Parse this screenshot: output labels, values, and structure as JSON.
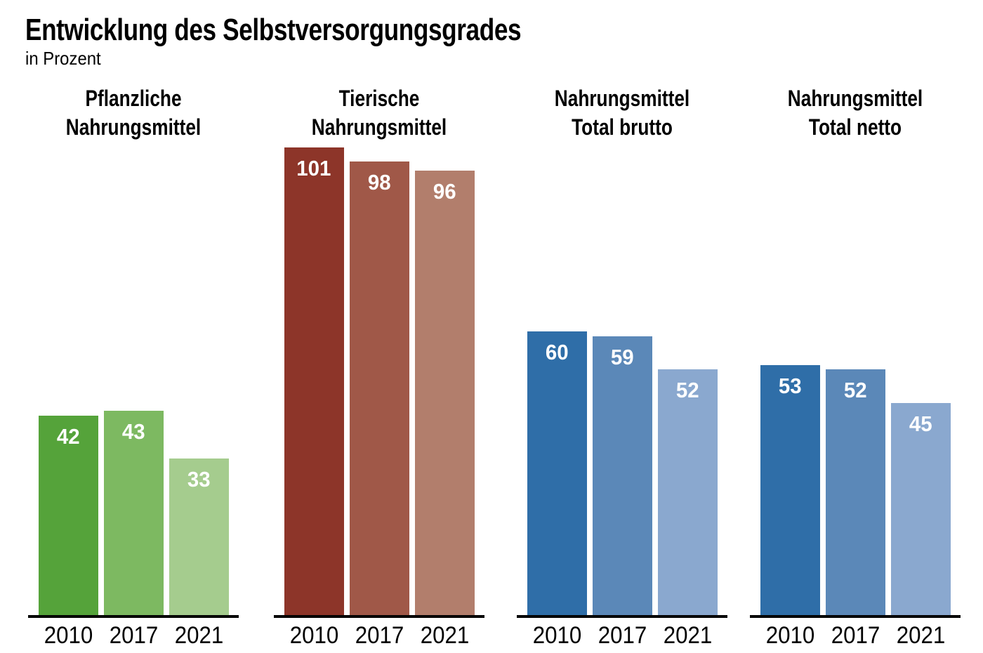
{
  "title": "Entwicklung des Selbstversorgungsgrades",
  "subtitle": "in Prozent",
  "chart_data": {
    "type": "bar",
    "title": "Entwicklung des Selbstversorgungsgrades",
    "subtitle": "in Prozent",
    "unit": "Prozent",
    "grid": false,
    "legend": "none",
    "value_labels": "inside top of bars, white bold",
    "categories": [
      "2010",
      "2017",
      "2021"
    ],
    "groups": [
      {
        "label_lines": [
          "Pflanzliche",
          "Nahrungsmittel"
        ],
        "values": [
          42,
          43,
          33
        ],
        "colors": [
          "#55a33a",
          "#7db961",
          "#a5cc8e"
        ]
      },
      {
        "label_lines": [
          "Tierische",
          "Nahrungsmittel"
        ],
        "values": [
          101,
          98,
          96
        ],
        "colors": [
          "#8d3529",
          "#a05848",
          "#b27e6c"
        ]
      },
      {
        "label_lines": [
          "Nahrungsmittel",
          "Total brutto"
        ],
        "values": [
          60,
          59,
          52
        ],
        "colors": [
          "#2f6ea8",
          "#5b88b8",
          "#8aa8cf"
        ]
      },
      {
        "label_lines": [
          "Nahrungsmittel",
          "Total netto"
        ],
        "values": [
          53,
          52,
          45
        ],
        "colors": [
          "#2f6ea8",
          "#5b88b8",
          "#8aa8cf"
        ]
      }
    ],
    "colors_meaning": {
      "axis_color": "#000000",
      "text_color": "#000000",
      "value_label_color": "#ffffff"
    }
  }
}
